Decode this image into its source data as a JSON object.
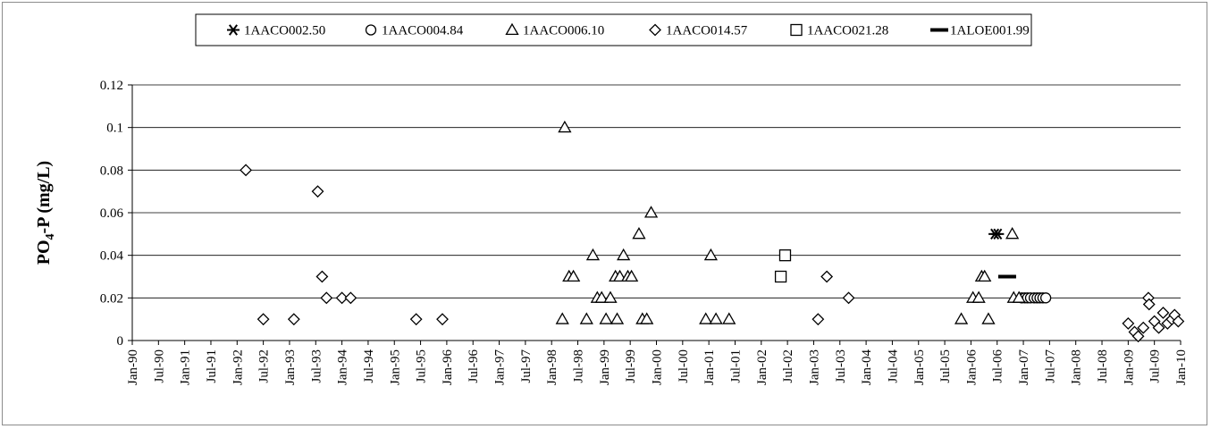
{
  "chart_data": {
    "type": "scatter",
    "title": "",
    "xlabel": "",
    "ylabel": "PO4-P (mg/L)",
    "ylabel_parts": [
      "PO",
      "4",
      "-P (mg/L)"
    ],
    "ylim": [
      0,
      0.12
    ],
    "y_ticks": [
      0,
      0.02,
      0.04,
      0.06,
      0.08,
      0.1,
      0.12
    ],
    "y_tick_labels": [
      "0",
      "0.02",
      "0.04",
      "0.06",
      "0.08",
      "0.1",
      "0.12"
    ],
    "x_range": [
      "1990-01",
      "2010-01"
    ],
    "x_tick_labels": [
      "Jan-90",
      "Jul-90",
      "Jan-91",
      "Jul-91",
      "Jan-92",
      "Jul-92",
      "Jan-93",
      "Jul-93",
      "Jan-94",
      "Jul-94",
      "Jan-95",
      "Jul-95",
      "Jan-96",
      "Jul-96",
      "Jan-97",
      "Jul-97",
      "Jan-98",
      "Jul-98",
      "Jan-99",
      "Jul-99",
      "Jan-00",
      "Jul-00",
      "Jan-01",
      "Jul-01",
      "Jan-02",
      "Jul-02",
      "Jan-03",
      "Jul-03",
      "Jan-04",
      "Jul-04",
      "Jan-05",
      "Jul-05",
      "Jan-06",
      "Jul-06",
      "Jan-07",
      "Jul-07",
      "Jan-08",
      "Jul-08",
      "Jan-09",
      "Jul-09",
      "Jan-10"
    ],
    "grid": "horizontal",
    "legend_position": "top",
    "marker_color": "#000000",
    "series": [
      {
        "name": "1AACO002.50",
        "marker": "asterisk",
        "points": [
          {
            "date": "2006-06-15",
            "y": 0.05
          },
          {
            "date": "2006-07-05",
            "y": 0.05
          }
        ]
      },
      {
        "name": "1AACO004.84",
        "marker": "circle",
        "points": [
          {
            "date": "2006-12-20",
            "y": 0.02
          },
          {
            "date": "2007-01-10",
            "y": 0.02
          },
          {
            "date": "2007-01-30",
            "y": 0.02
          },
          {
            "date": "2007-02-20",
            "y": 0.02
          },
          {
            "date": "2007-03-15",
            "y": 0.02
          },
          {
            "date": "2007-04-05",
            "y": 0.02
          },
          {
            "date": "2007-04-25",
            "y": 0.02
          },
          {
            "date": "2007-05-15",
            "y": 0.02
          },
          {
            "date": "2007-06-05",
            "y": 0.02
          }
        ]
      },
      {
        "name": "1AACO006.10",
        "marker": "triangle",
        "points": [
          {
            "date": "1998-03-15",
            "y": 0.01
          },
          {
            "date": "1998-04-01",
            "y": 0.1
          },
          {
            "date": "1998-05-01",
            "y": 0.03
          },
          {
            "date": "1998-06-01",
            "y": 0.03
          },
          {
            "date": "1998-09-01",
            "y": 0.01
          },
          {
            "date": "1998-10-15",
            "y": 0.04
          },
          {
            "date": "1998-11-15",
            "y": 0.02
          },
          {
            "date": "1998-12-15",
            "y": 0.02
          },
          {
            "date": "1999-01-15",
            "y": 0.01
          },
          {
            "date": "1999-02-15",
            "y": 0.02
          },
          {
            "date": "1999-03-20",
            "y": 0.03
          },
          {
            "date": "1999-04-01",
            "y": 0.01
          },
          {
            "date": "1999-04-20",
            "y": 0.03
          },
          {
            "date": "1999-05-15",
            "y": 0.04
          },
          {
            "date": "1999-06-15",
            "y": 0.03
          },
          {
            "date": "1999-07-10",
            "y": 0.03
          },
          {
            "date": "1999-09-01",
            "y": 0.05
          },
          {
            "date": "1999-09-25",
            "y": 0.01
          },
          {
            "date": "1999-10-25",
            "y": 0.01
          },
          {
            "date": "1999-11-25",
            "y": 0.06
          },
          {
            "date": "2000-12-10",
            "y": 0.01
          },
          {
            "date": "2001-01-15",
            "y": 0.04
          },
          {
            "date": "2001-02-20",
            "y": 0.01
          },
          {
            "date": "2001-05-20",
            "y": 0.01
          },
          {
            "date": "2005-10-25",
            "y": 0.01
          },
          {
            "date": "2006-01-15",
            "y": 0.02
          },
          {
            "date": "2006-02-25",
            "y": 0.02
          },
          {
            "date": "2006-03-15",
            "y": 0.03
          },
          {
            "date": "2006-04-05",
            "y": 0.03
          },
          {
            "date": "2006-05-01",
            "y": 0.01
          },
          {
            "date": "2006-10-15",
            "y": 0.05
          },
          {
            "date": "2006-10-25",
            "y": 0.02
          },
          {
            "date": "2006-12-01",
            "y": 0.02
          }
        ]
      },
      {
        "name": "1AACO014.57",
        "marker": "diamond",
        "points": [
          {
            "date": "1992-03-01",
            "y": 0.08
          },
          {
            "date": "1992-07-01",
            "y": 0.01
          },
          {
            "date": "1993-02-01",
            "y": 0.01
          },
          {
            "date": "1993-07-15",
            "y": 0.07
          },
          {
            "date": "1993-08-15",
            "y": 0.03
          },
          {
            "date": "1993-09-15",
            "y": 0.02
          },
          {
            "date": "1994-01-01",
            "y": 0.02
          },
          {
            "date": "1994-03-01",
            "y": 0.02
          },
          {
            "date": "1995-06-01",
            "y": 0.01
          },
          {
            "date": "1995-12-01",
            "y": 0.01
          },
          {
            "date": "2003-02-01",
            "y": 0.01
          },
          {
            "date": "2003-04-01",
            "y": 0.03
          },
          {
            "date": "2003-09-01",
            "y": 0.02
          },
          {
            "date": "2009-01-01",
            "y": 0.008
          },
          {
            "date": "2009-02-15",
            "y": 0.004
          },
          {
            "date": "2009-03-10",
            "y": 0.002
          },
          {
            "date": "2009-04-15",
            "y": 0.006
          },
          {
            "date": "2009-05-20",
            "y": 0.02
          },
          {
            "date": "2009-05-25",
            "y": 0.017
          },
          {
            "date": "2009-07-01",
            "y": 0.009
          },
          {
            "date": "2009-08-01",
            "y": 0.006
          },
          {
            "date": "2009-09-01",
            "y": 0.013
          },
          {
            "date": "2009-10-01",
            "y": 0.008
          },
          {
            "date": "2009-11-01",
            "y": 0.01
          },
          {
            "date": "2009-11-20",
            "y": 0.012
          },
          {
            "date": "2009-12-15",
            "y": 0.009
          }
        ]
      },
      {
        "name": "1AACO021.28",
        "marker": "square",
        "points": [
          {
            "date": "2002-05-15",
            "y": 0.03
          },
          {
            "date": "2002-06-15",
            "y": 0.04
          }
        ]
      },
      {
        "name": "1ALOE001.99",
        "marker": "dash",
        "points": [
          {
            "date": "2006-09-10",
            "y": 0.03
          }
        ]
      }
    ]
  }
}
